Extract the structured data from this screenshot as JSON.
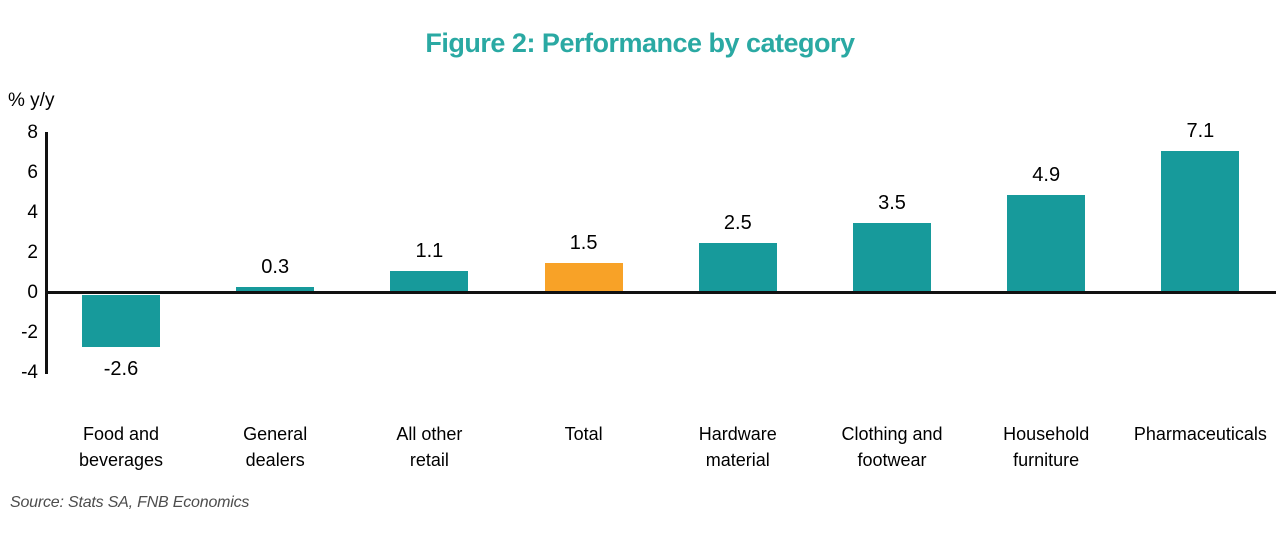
{
  "source": "Source: Stats SA, FNB Economics",
  "chart_data": {
    "type": "bar",
    "title": "Figure 2: Performance by category",
    "ylabel": "% y/y",
    "xlabel": "",
    "categories": [
      "Food and\nbeverages",
      "General\ndealers",
      "All other\nretail",
      "Total",
      "Hardware\nmaterial",
      "Clothing and\nfootwear",
      "Household\nfurniture",
      "Pharmaceuticals"
    ],
    "values": [
      -2.6,
      0.3,
      1.1,
      1.5,
      2.5,
      3.5,
      4.9,
      7.1
    ],
    "data_labels": [
      "-2.6",
      "0.3",
      "1.1",
      "1.5",
      "2.5",
      "3.5",
      "4.9",
      "7.1"
    ],
    "highlight_index": 3,
    "yticks": [
      8,
      6,
      4,
      2,
      0,
      -2,
      -4
    ],
    "ylim": [
      -4,
      8
    ],
    "grid": false,
    "legend": false,
    "colors": {
      "bar": "#179a9b",
      "highlight_bar": "#f8a227",
      "title": "#2aa9a3",
      "axis": "#111111",
      "text": "#000000",
      "source_text": "#4d4d4d"
    }
  }
}
